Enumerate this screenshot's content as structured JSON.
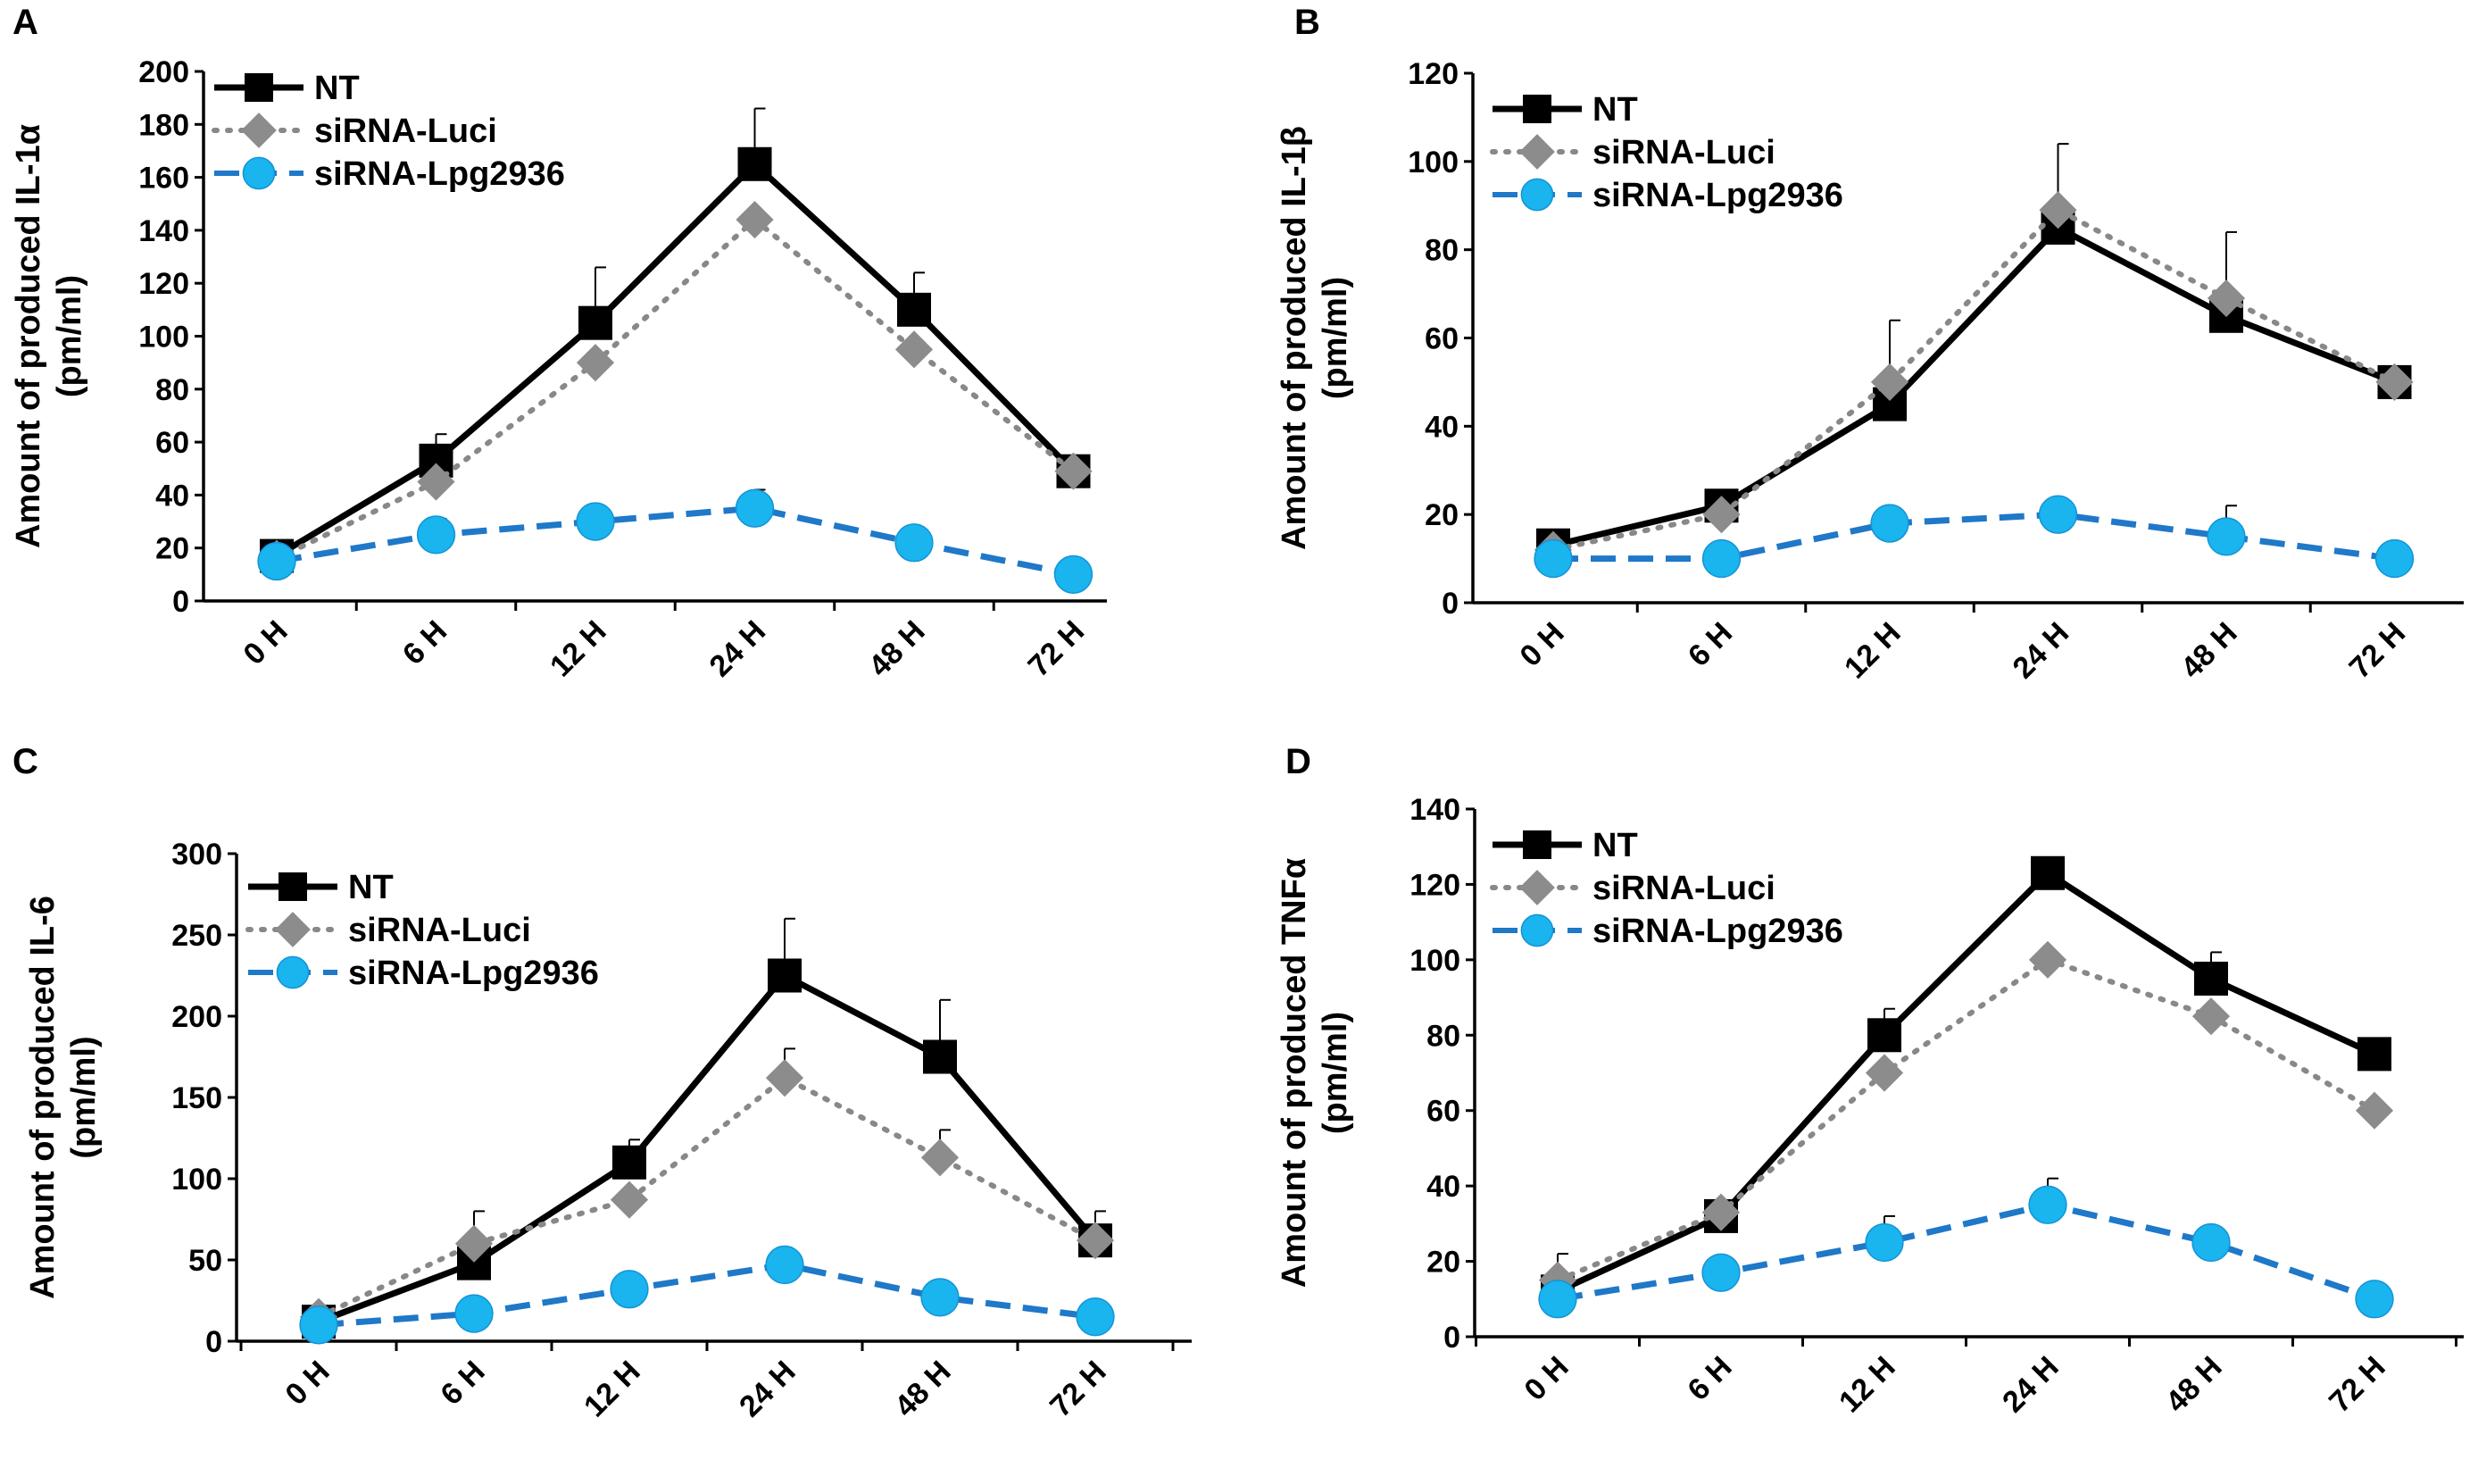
{
  "series_styles": [
    {
      "name": "NT",
      "color": "#000000",
      "dash": "solid",
      "marker": "square"
    },
    {
      "name": "siRNA-Luci",
      "color": "#888888",
      "dash": "dotted",
      "marker": "diamond"
    },
    {
      "name": "siRNA-Lpg2936",
      "color": "#1f78c8",
      "fill": "#1ab4ee",
      "dash": "dashed",
      "marker": "circle"
    }
  ],
  "chart_data": [
    {
      "type": "line",
      "panel": "A",
      "categories": [
        "0 H",
        "6 H",
        "12 H",
        "24  H",
        "48 H",
        "72 H"
      ],
      "ylabel": [
        "Amount of produced IL-1α",
        "(pm/ml)"
      ],
      "ylim": [
        0,
        200
      ],
      "yticks": [
        0,
        20,
        40,
        60,
        80,
        100,
        120,
        140,
        160,
        180,
        200
      ],
      "series": [
        {
          "name": "NT",
          "values": [
            17,
            53,
            105,
            165,
            110,
            49
          ],
          "errors": [
            null,
            10,
            21,
            21,
            14,
            null
          ]
        },
        {
          "name": "siRNA-Luci",
          "values": [
            16,
            45,
            90,
            144,
            95,
            49
          ],
          "errors": [
            null,
            null,
            null,
            null,
            null,
            null
          ]
        },
        {
          "name": "siRNA-Lpg2936",
          "values": [
            15,
            25,
            30,
            35,
            22,
            10
          ],
          "errors": [
            null,
            6,
            null,
            7,
            null,
            null
          ]
        }
      ]
    },
    {
      "type": "line",
      "panel": "B",
      "categories": [
        "0 H",
        "6 H",
        "12 H",
        "24  H",
        "48 H",
        "72 H"
      ],
      "ylabel": [
        "Amount of produced IL-1β",
        "(pm/ml)"
      ],
      "ylim": [
        0,
        120
      ],
      "yticks": [
        0,
        20,
        40,
        60,
        80,
        100,
        120
      ],
      "series": [
        {
          "name": "NT",
          "values": [
            13,
            22,
            45,
            85,
            65,
            50
          ],
          "errors": [
            null,
            null,
            null,
            19,
            null,
            null
          ]
        },
        {
          "name": "siRNA-Luci",
          "values": [
            12,
            20,
            50,
            89,
            69,
            50
          ],
          "errors": [
            null,
            null,
            14,
            15,
            15,
            null
          ]
        },
        {
          "name": "siRNA-Lpg2936",
          "values": [
            10,
            10,
            18,
            20,
            15,
            10
          ],
          "errors": [
            null,
            null,
            null,
            null,
            7,
            null
          ]
        }
      ]
    },
    {
      "type": "line",
      "panel": "C",
      "categories": [
        "0 H",
        "6 H",
        "12 H",
        "24  H",
        "48 H",
        "72 H"
      ],
      "ylabel": [
        "Amount of produced IL-6",
        "(pm/ml)"
      ],
      "ylim": [
        0,
        300
      ],
      "yticks": [
        0,
        50,
        100,
        150,
        200,
        250,
        300
      ],
      "series": [
        {
          "name": "NT",
          "values": [
            12,
            48,
            110,
            225,
            175,
            62
          ],
          "errors": [
            null,
            null,
            14,
            35,
            35,
            18
          ]
        },
        {
          "name": "siRNA-Luci",
          "values": [
            15,
            60,
            87,
            162,
            113,
            62
          ],
          "errors": [
            null,
            20,
            null,
            18,
            17,
            null
          ]
        },
        {
          "name": "siRNA-Lpg2936",
          "values": [
            10,
            17,
            32,
            47,
            27,
            15
          ],
          "errors": [
            null,
            null,
            null,
            null,
            null,
            null
          ]
        }
      ]
    },
    {
      "type": "line",
      "panel": "D",
      "categories": [
        "0 H",
        "6 H",
        "12 H",
        "24  H",
        "48 H",
        "72 H"
      ],
      "ylabel": [
        "Amount of produced TNFα",
        "(pm/ml)"
      ],
      "ylim": [
        0,
        140
      ],
      "yticks": [
        0,
        20,
        40,
        60,
        80,
        100,
        120,
        140
      ],
      "series": [
        {
          "name": "NT",
          "values": [
            12,
            32,
            80,
            123,
            95,
            75
          ],
          "errors": [
            null,
            null,
            7,
            null,
            7,
            null
          ]
        },
        {
          "name": "siRNA-Luci",
          "values": [
            15,
            33,
            70,
            100,
            85,
            60
          ],
          "errors": [
            7,
            null,
            null,
            null,
            null,
            null
          ]
        },
        {
          "name": "siRNA-Lpg2936",
          "values": [
            10,
            17,
            25,
            35,
            25,
            10
          ],
          "errors": [
            null,
            null,
            7,
            7,
            null,
            null
          ]
        }
      ]
    }
  ]
}
